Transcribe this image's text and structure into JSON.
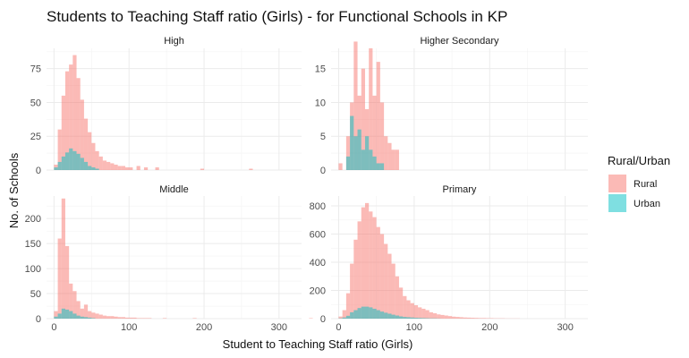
{
  "chart_data": {
    "type": "histogram",
    "title": "Students to Teaching Staff ratio (Girls) - for Functional Schools in KP",
    "xlabel": "Student to Teaching Staff ratio (Girls)",
    "ylabel": "No. of Schools",
    "binwidth": 5,
    "xlim": [
      -10,
      330
    ],
    "x_ticks": [
      0,
      100,
      200,
      300
    ],
    "grid": true,
    "legend": {
      "title": "Rural/Urban",
      "placement": "right",
      "entries": [
        {
          "name": "Rural",
          "color": "#F8766D"
        },
        {
          "name": "Urban",
          "color": "#00BFC4"
        }
      ]
    },
    "colors": {
      "rural": "#F8766D",
      "urban": "#00BFC4"
    },
    "facets": [
      {
        "name": "High",
        "ylim": [
          0,
          90
        ],
        "y_ticks": [
          0,
          25,
          50,
          75
        ],
        "y_tick_labels": [
          "0",
          "25",
          "50",
          "75"
        ],
        "bin_start": 0,
        "rural": [
          4,
          30,
          55,
          73,
          78,
          85,
          68,
          52,
          38,
          28,
          20,
          14,
          10,
          7,
          6,
          5,
          4,
          3,
          3,
          2,
          2,
          0,
          3,
          0,
          2,
          0,
          0,
          2,
          0,
          0,
          0,
          0,
          0,
          0,
          0,
          0,
          0,
          0,
          0,
          1,
          0,
          0,
          0,
          0,
          0,
          0,
          0,
          0,
          0,
          0,
          0,
          0,
          1
        ],
        "urban": [
          2,
          6,
          10,
          13,
          16,
          14,
          12,
          9,
          6,
          3,
          2,
          1
        ]
      },
      {
        "name": "Higher Secondary",
        "ylim": [
          0,
          18
        ],
        "y_ticks": [
          0,
          5,
          10,
          15
        ],
        "y_tick_labels": [
          "0",
          "5",
          "10",
          "15"
        ],
        "bin_start": 0,
        "rural": [
          1,
          0,
          5,
          10,
          19,
          11,
          15,
          9,
          18,
          11,
          16,
          10,
          5,
          4,
          3,
          3
        ],
        "urban": [
          0,
          0,
          2,
          8,
          5,
          6,
          3,
          5,
          3,
          2,
          1,
          1
        ]
      },
      {
        "name": "Middle",
        "ylim": [
          0,
          245
        ],
        "y_ticks": [
          0,
          50,
          100,
          150,
          200
        ],
        "y_tick_labels": [
          "0",
          "50",
          "100",
          "150",
          "200"
        ],
        "bin_start": 0,
        "rural": [
          15,
          160,
          240,
          145,
          70,
          55,
          35,
          20,
          28,
          15,
          12,
          10,
          8,
          6,
          5,
          5,
          4,
          3,
          3,
          2,
          2,
          2,
          1,
          1,
          1,
          1,
          0,
          0,
          0,
          1,
          0,
          0,
          0,
          0,
          0,
          0,
          0,
          1,
          0,
          0,
          0,
          0,
          0,
          0,
          0,
          0,
          0,
          0,
          0,
          0,
          0,
          0,
          0,
          0,
          0,
          0,
          0,
          0,
          0,
          0,
          0,
          0,
          0,
          0,
          0,
          0,
          0,
          0,
          1
        ],
        "urban": [
          4,
          10,
          20,
          18,
          15,
          10,
          6,
          4,
          3,
          2,
          1
        ]
      },
      {
        "name": "Primary",
        "ylim": [
          0,
          870
        ],
        "y_ticks": [
          0,
          200,
          400,
          600,
          800
        ],
        "y_tick_labels": [
          "0",
          "200",
          "400",
          "600",
          "800"
        ],
        "bin_start": 0,
        "rural": [
          15,
          60,
          180,
          390,
          560,
          690,
          790,
          820,
          760,
          720,
          650,
          600,
          530,
          460,
          390,
          300,
          220,
          160,
          130,
          110,
          95,
          80,
          70,
          60,
          45,
          38,
          30,
          26,
          22,
          18,
          14,
          12,
          10,
          8,
          7,
          6,
          5,
          4,
          4,
          3,
          3,
          2,
          2,
          2,
          1,
          1,
          1,
          1
        ],
        "urban": [
          2,
          8,
          20,
          45,
          60,
          75,
          85,
          85,
          80,
          70,
          60,
          50,
          42,
          35,
          28,
          22,
          16,
          12,
          10,
          8,
          6,
          5,
          4,
          3,
          2,
          2,
          1
        ]
      }
    ]
  }
}
